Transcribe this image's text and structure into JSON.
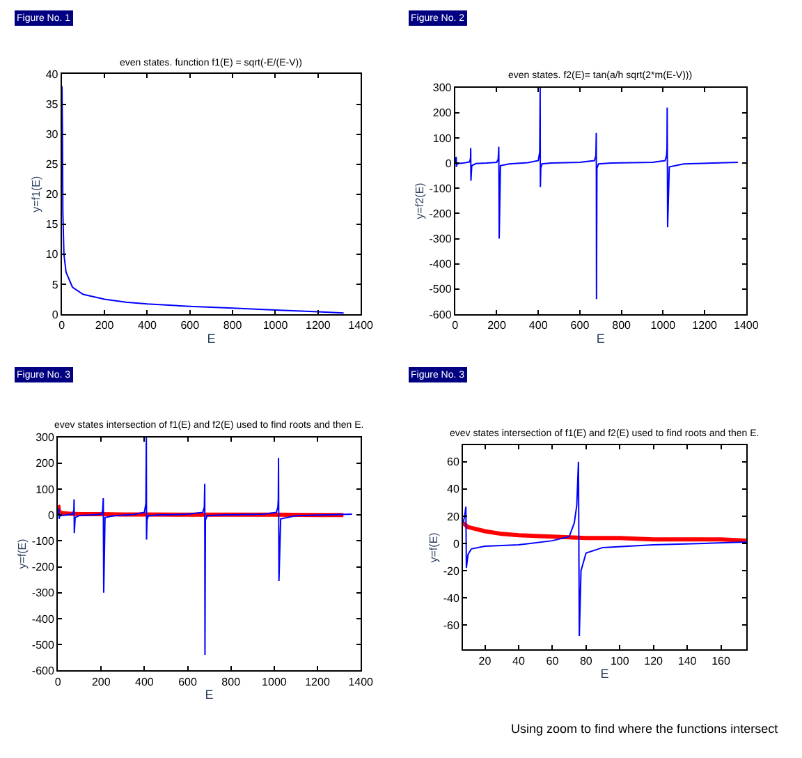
{
  "chart_data": [
    {
      "type": "line",
      "title": "even states. function f1(E) = sqrt(-E/(E-V))",
      "xlabel": "E",
      "ylabel": "y=f1(E)",
      "xlim": [
        0,
        1400
      ],
      "ylim": [
        0,
        40
      ],
      "xticks": [
        0,
        200,
        400,
        600,
        800,
        1000,
        1200,
        1400
      ],
      "yticks": [
        0,
        5,
        10,
        15,
        20,
        25,
        30,
        35,
        40
      ],
      "annotations": [
        "Figure No. 1"
      ],
      "series": [
        {
          "color": "#0000ff",
          "x": [
            1,
            3,
            5,
            10,
            20,
            50,
            100,
            200,
            300,
            400,
            600,
            800,
            1000,
            1200,
            1320
          ],
          "values": [
            38,
            31,
            17,
            10,
            7,
            4.5,
            3.3,
            2.5,
            2,
            1.7,
            1.3,
            1,
            0.7,
            0.4,
            0.2
          ]
        }
      ]
    },
    {
      "type": "line",
      "title": "even states. f2(E)= tan(a/h sqrt(2*m(E-V)))",
      "xlabel": "E",
      "ylabel": "y=f2(E)",
      "xlim": [
        0,
        1400
      ],
      "ylim": [
        -600,
        300
      ],
      "xticks": [
        0,
        200,
        400,
        600,
        800,
        1000,
        1200,
        1400
      ],
      "yticks": [
        -600,
        -500,
        -400,
        -300,
        -200,
        -100,
        0,
        100,
        200,
        300
      ],
      "annotations": [
        "Figure No. 2"
      ],
      "series": [
        {
          "color": "#0000ff",
          "x": [
            0,
            3,
            5,
            6,
            8,
            15,
            40,
            70,
            74,
            75,
            76,
            80,
            100,
            150,
            200,
            207,
            209,
            210,
            212,
            218,
            260,
            350,
            400,
            407,
            409,
            410,
            412,
            418,
            460,
            600,
            670,
            677,
            679,
            680,
            682,
            690,
            750,
            950,
            1010,
            1017,
            1019,
            1020,
            1022,
            1030,
            1100,
            1360
          ],
          "values": [
            0,
            5,
            25,
            -15,
            -5,
            -2,
            0,
            5,
            20,
            60,
            -70,
            -10,
            -2,
            0,
            3,
            15,
            45,
            65,
            -300,
            -10,
            -3,
            2,
            10,
            45,
            300,
            -95,
            -20,
            -3,
            0,
            3,
            10,
            30,
            120,
            -540,
            -20,
            -3,
            0,
            3,
            10,
            30,
            60,
            220,
            -255,
            -15,
            -3,
            3
          ]
        }
      ]
    },
    {
      "type": "line",
      "title": "evev states intersection of f1(E) and f2(E) used to find roots and then E.",
      "xlabel": "E",
      "ylabel": "y=f(E)",
      "xlim": [
        0,
        1400
      ],
      "ylim": [
        -600,
        300
      ],
      "xticks": [
        0,
        200,
        400,
        600,
        800,
        1000,
        1200,
        1400
      ],
      "yticks": [
        -600,
        -500,
        -400,
        -300,
        -200,
        -100,
        0,
        100,
        200,
        300
      ],
      "annotations": [
        "Figure No. 3"
      ],
      "series": [
        {
          "color": "#ff0000",
          "x": [
            1,
            3,
            5,
            10,
            20,
            50,
            100,
            200,
            300,
            400,
            600,
            800,
            1000,
            1200,
            1320
          ],
          "values": [
            38,
            31,
            17,
            10,
            7,
            5,
            3,
            3,
            2,
            2,
            1,
            1,
            1,
            0,
            0
          ]
        },
        {
          "color": "#0000ff",
          "x": [
            0,
            3,
            5,
            6,
            8,
            15,
            40,
            70,
            74,
            75,
            76,
            80,
            100,
            150,
            200,
            207,
            209,
            210,
            212,
            218,
            260,
            350,
            400,
            407,
            409,
            410,
            412,
            418,
            460,
            600,
            670,
            677,
            679,
            680,
            682,
            690,
            750,
            950,
            1010,
            1017,
            1019,
            1020,
            1022,
            1030,
            1100,
            1360
          ],
          "values": [
            0,
            5,
            25,
            -15,
            -5,
            -2,
            0,
            5,
            20,
            60,
            -70,
            -10,
            -2,
            0,
            3,
            15,
            45,
            65,
            -300,
            -10,
            -3,
            2,
            10,
            45,
            300,
            -95,
            -20,
            -3,
            0,
            3,
            10,
            30,
            120,
            -540,
            -20,
            -3,
            0,
            3,
            10,
            30,
            60,
            220,
            -255,
            -15,
            -3,
            3
          ]
        }
      ]
    },
    {
      "type": "line",
      "title": "evev states intersection of f1(E) and f2(E) used to find roots and then E.",
      "xlabel": "E",
      "ylabel": "y=f(E)",
      "xlim": [
        7,
        175
      ],
      "ylim": [
        -78,
        72
      ],
      "xticks": [
        20,
        40,
        60,
        80,
        100,
        120,
        140,
        160
      ],
      "yticks": [
        -60,
        -40,
        -20,
        0,
        20,
        40,
        60
      ],
      "annotations": [
        "Figure No. 3",
        "Using zoom to find where the functions intersect"
      ],
      "series": [
        {
          "color": "#ff0000",
          "x": [
            7,
            10,
            20,
            30,
            40,
            60,
            80,
            100,
            120,
            140,
            160,
            175
          ],
          "values": [
            15,
            12,
            9,
            7,
            6,
            5,
            4,
            4,
            3,
            3,
            3,
            2
          ]
        },
        {
          "color": "#0000ff",
          "x": [
            7,
            8,
            8.7,
            9,
            10,
            12,
            20,
            40,
            60,
            70,
            73,
            74.5,
            75.5,
            76,
            77,
            80,
            90,
            120,
            150,
            175
          ],
          "values": [
            15,
            20,
            27,
            -18,
            -8,
            -4,
            -2,
            -1,
            2,
            5,
            15,
            28,
            60,
            -68,
            -20,
            -7,
            -3,
            -1,
            0,
            1
          ]
        }
      ]
    }
  ]
}
